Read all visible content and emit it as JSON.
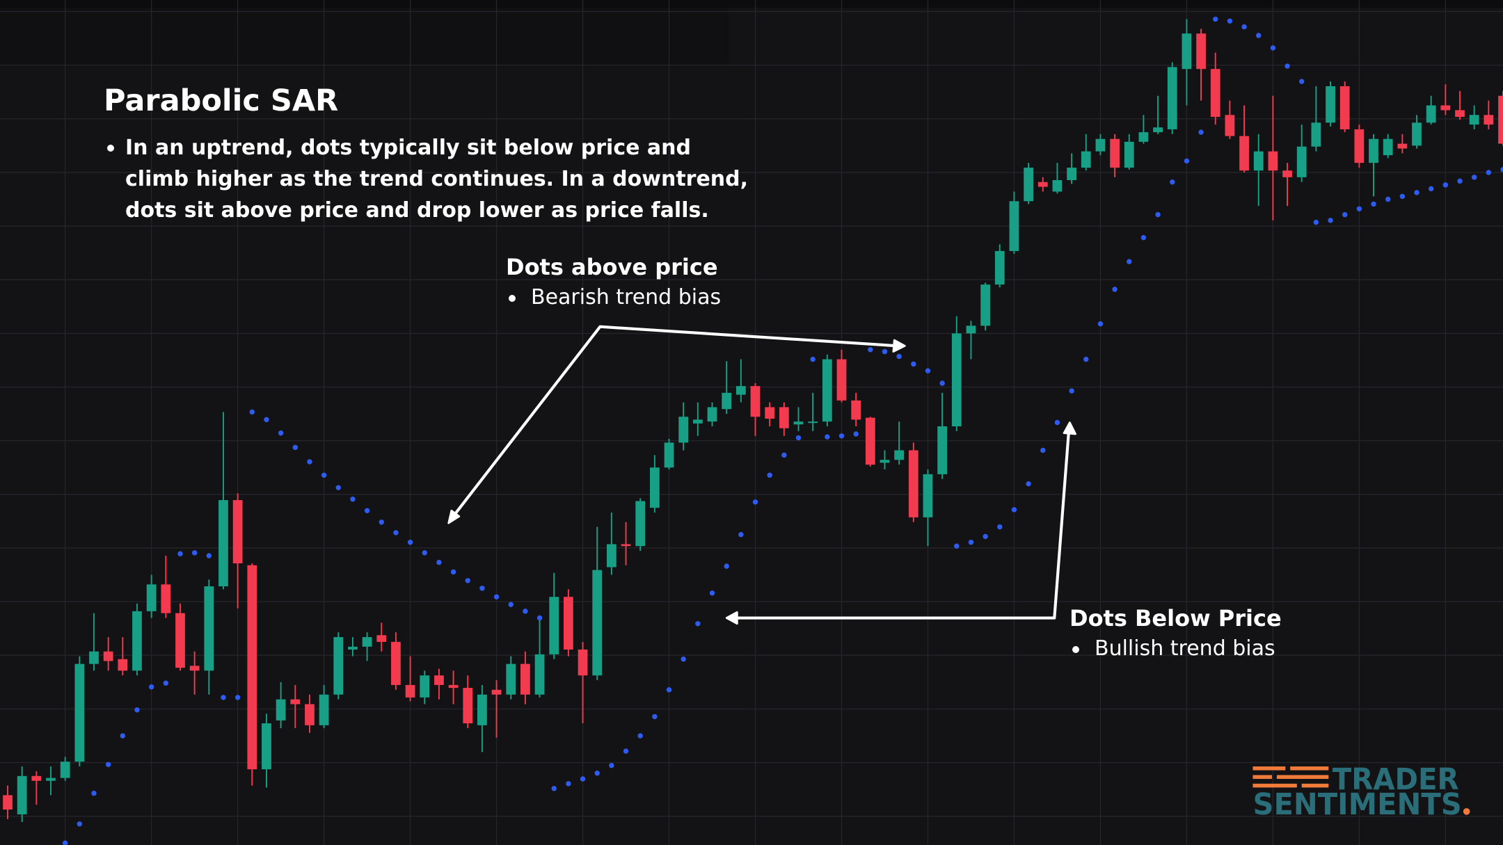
{
  "chart_data": {
    "type": "candlestick",
    "title": "Parabolic SAR",
    "description": "In an uptrend, dots typically sit below price and climb higher as the trend continues. In a downtrend, dots sit above price and drop lower as price falls.",
    "annotations": [
      {
        "title": "Dots above price",
        "text": "Bearish trend bias"
      },
      {
        "title": "Dots Below Price",
        "text": "Bullish trend bias"
      }
    ],
    "logo": [
      "TRADER",
      "SENTIMENTS"
    ],
    "up_color": "#17a085",
    "down_color": "#f23b4e",
    "sar_color": "#2f5cf0",
    "ylim": [
      0,
      882
    ],
    "open": [
      52,
      32,
      72,
      67,
      70,
      87,
      189,
      202,
      194,
      182,
      244,
      272,
      242,
      187,
      182,
      270,
      360,
      292,
      79,
      130,
      152,
      147,
      125,
      157,
      204,
      207,
      219,
      212,
      167,
      154,
      177,
      167,
      164,
      125,
      162,
      157,
      189,
      157,
      199,
      259,
      204,
      177,
      290,
      314,
      312,
      352,
      394,
      420,
      440,
      442,
      455,
      470,
      479,
      457,
      457,
      439,
      441,
      442,
      507,
      464,
      446,
      399,
      402,
      412,
      342,
      387,
      437,
      534,
      542,
      585,
      620,
      672,
      692,
      682,
      694,
      707,
      724,
      737,
      707,
      734,
      744,
      747,
      810,
      847,
      810,
      762,
      740,
      704,
      724,
      704,
      697,
      729,
      754,
      792,
      747,
      712,
      720,
      732,
      730,
      754,
      772,
      767,
      752,
      762,
      782
    ],
    "high": [
      62,
      82,
      77,
      82,
      92,
      197,
      242,
      217,
      217,
      252,
      282,
      302,
      252,
      202,
      277,
      452,
      367,
      294,
      137,
      170,
      167,
      157,
      167,
      222,
      217,
      222,
      232,
      222,
      197,
      182,
      184,
      182,
      177,
      167,
      172,
      197,
      202,
      237,
      284,
      267,
      212,
      332,
      347,
      337,
      362,
      407,
      424,
      462,
      462,
      462,
      505,
      507,
      482,
      462,
      462,
      457,
      472,
      512,
      517,
      472,
      447,
      412,
      442,
      420,
      392,
      472,
      552,
      547,
      587,
      627,
      682,
      712,
      697,
      712,
      722,
      742,
      742,
      742,
      742,
      762,
      782,
      817,
      862,
      852,
      827,
      777,
      772,
      742,
      782,
      712,
      752,
      792,
      797,
      797,
      752,
      742,
      742,
      742,
      762,
      782,
      794,
      787,
      772,
      777,
      787
    ],
    "low": [
      27,
      24,
      42,
      52,
      67,
      82,
      182,
      182,
      177,
      177,
      237,
      237,
      182,
      157,
      157,
      267,
      247,
      62,
      60,
      122,
      122,
      117,
      122,
      152,
      197,
      192,
      202,
      162,
      150,
      147,
      152,
      147,
      122,
      97,
      112,
      152,
      147,
      154,
      194,
      197,
      127,
      172,
      282,
      292,
      307,
      347,
      392,
      412,
      427,
      437,
      450,
      462,
      427,
      437,
      427,
      432,
      432,
      437,
      462,
      437,
      395,
      392,
      397,
      337,
      312,
      382,
      432,
      507,
      537,
      582,
      617,
      669,
      682,
      680,
      690,
      704,
      720,
      697,
      705,
      732,
      742,
      742,
      772,
      777,
      752,
      737,
      702,
      667,
      652,
      667,
      692,
      724,
      750,
      744,
      707,
      677,
      717,
      722,
      727,
      752,
      762,
      757,
      747,
      747,
      730
    ],
    "close": [
      37,
      72,
      67,
      70,
      87,
      189,
      202,
      192,
      182,
      244,
      272,
      242,
      185,
      182,
      270,
      360,
      294,
      79,
      127,
      152,
      147,
      125,
      157,
      217,
      207,
      217,
      212,
      167,
      154,
      177,
      167,
      164,
      127,
      157,
      157,
      189,
      157,
      199,
      259,
      204,
      177,
      287,
      314,
      312,
      359,
      394,
      420,
      447,
      444,
      457,
      472,
      479,
      447,
      445,
      435,
      442,
      442,
      507,
      464,
      444,
      397,
      402,
      412,
      342,
      387,
      437,
      534,
      542,
      585,
      620,
      672,
      707,
      687,
      694,
      707,
      724,
      737,
      707,
      734,
      744,
      749,
      812,
      847,
      810,
      760,
      740,
      704,
      724,
      704,
      697,
      729,
      754,
      792,
      747,
      712,
      737,
      737,
      727,
      754,
      772,
      767,
      760,
      762,
      752,
      732
    ],
    "sar": [
      null,
      null,
      null,
      null,
      2,
      22,
      54,
      84,
      114,
      141,
      165,
      169,
      304,
      305,
      302,
      154,
      154,
      452,
      444,
      430,
      415,
      400,
      386,
      373,
      361,
      349,
      337,
      326,
      316,
      305,
      295,
      285,
      276,
      268,
      259,
      251,
      244,
      237,
      59,
      64,
      69,
      75,
      83,
      98,
      114,
      134,
      162,
      194,
      231,
      263,
      291,
      324,
      358,
      386,
      407,
      425,
      507,
      426,
      427,
      429,
      517,
      515,
      510,
      502,
      495,
      482,
      312,
      316,
      322,
      332,
      350,
      377,
      412,
      441,
      474,
      507,
      544,
      580,
      609,
      634,
      658,
      692,
      714,
      744,
      862,
      860,
      854,
      845,
      832,
      813,
      797,
      650,
      652,
      658,
      664,
      669,
      674,
      677,
      681,
      685,
      689,
      693,
      697,
      702,
      705
    ]
  }
}
